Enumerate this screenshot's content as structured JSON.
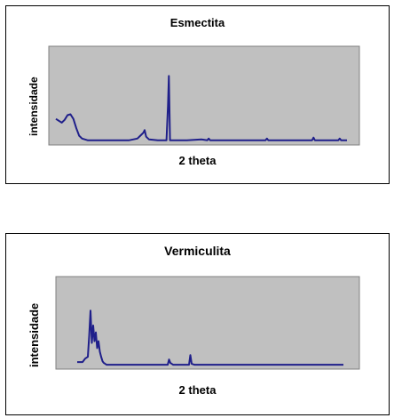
{
  "colors": {
    "plot_bg": "#c0c0c0",
    "line": "#1f1f8a",
    "frame": "#000000"
  },
  "chart_data": [
    {
      "type": "line",
      "title": "Esmectita",
      "xlabel": "2 theta",
      "ylabel": "intensidade",
      "grid": false,
      "legend": "none",
      "xlim": [
        0,
        100
      ],
      "ylim": [
        0,
        100
      ],
      "series": [
        {
          "x": [
            0,
            1,
            2,
            3,
            4,
            5,
            6,
            7,
            8,
            9,
            10,
            11,
            12,
            13,
            14,
            16,
            20,
            25,
            28,
            29,
            30,
            30.5,
            31,
            32,
            35,
            38,
            38.5,
            38.8,
            39.2,
            40,
            45,
            50,
            52,
            52.5,
            53,
            55,
            60,
            65,
            70,
            72,
            72.5,
            73,
            75,
            80,
            85,
            88,
            88.5,
            89,
            90,
            92,
            95,
            97,
            97.5,
            98,
            100
          ],
          "y": [
            26,
            24,
            22,
            25,
            30,
            31,
            26,
            16,
            8,
            5,
            4,
            3,
            3,
            3,
            3,
            3,
            3,
            3,
            5,
            8,
            11,
            14,
            7,
            4,
            3,
            3,
            40,
            72,
            3,
            3,
            3,
            4,
            3,
            5,
            3,
            3,
            3,
            3,
            3,
            3,
            5,
            3,
            3,
            3,
            3,
            3,
            6,
            3,
            3,
            3,
            3,
            3,
            5,
            3,
            3
          ]
        }
      ]
    },
    {
      "type": "line",
      "title": "Vermiculita",
      "xlabel": "2 theta",
      "ylabel": "intensidade",
      "grid": false,
      "legend": "none",
      "xlim": [
        0,
        100
      ],
      "ylim": [
        0,
        100
      ],
      "series": [
        {
          "x": [
            0,
            2,
            3,
            4,
            4.5,
            5,
            5.5,
            6,
            6.5,
            7,
            7.5,
            8,
            8.5,
            9,
            9.5,
            10,
            10.5,
            11,
            12,
            14,
            16,
            18,
            20,
            30,
            34,
            34.5,
            35,
            36,
            40,
            42,
            42.5,
            43,
            44,
            50,
            60,
            70,
            80,
            90,
            100
          ],
          "y": [
            6,
            6,
            10,
            12,
            36,
            65,
            28,
            48,
            30,
            40,
            22,
            30,
            18,
            12,
            7,
            5,
            4,
            3,
            3,
            3,
            3,
            3,
            3,
            3,
            3,
            9,
            5,
            3,
            3,
            3,
            14,
            4,
            3,
            3,
            3,
            3,
            3,
            3,
            3
          ]
        }
      ]
    }
  ]
}
